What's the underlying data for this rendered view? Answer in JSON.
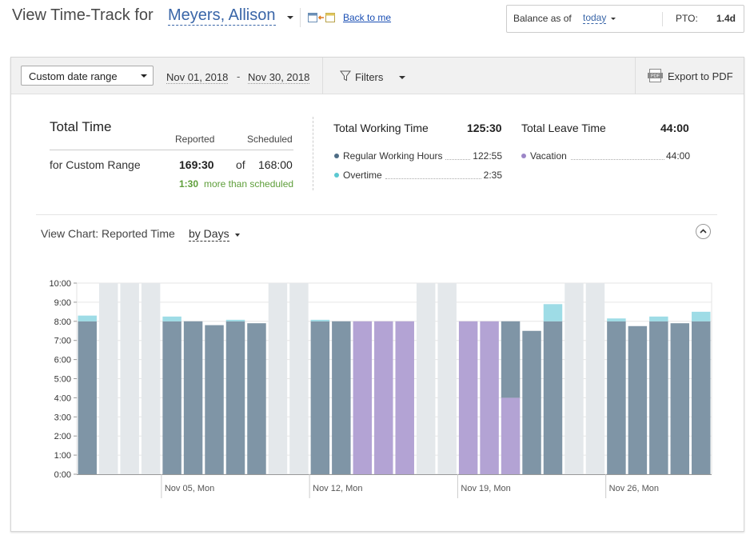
{
  "header": {
    "title": "View Time-Track for",
    "employee_name": "Meyers, Allison",
    "back_link": "Back to me",
    "balance_label": "Balance as of",
    "balance_date": "today",
    "pto_label": "PTO:",
    "pto_value": "1.4d"
  },
  "toolbar": {
    "range_select": "Custom date range",
    "date_from": "Nov 01, 2018",
    "date_separator": "-",
    "date_to": "Nov 30, 2018",
    "filters_label": "Filters",
    "export_label": "Export to PDF"
  },
  "summary": {
    "title": "Total Time",
    "col_reported": "Reported",
    "col_scheduled": "Scheduled",
    "range_label": "for Custom Range",
    "reported_value": "169:30",
    "of_label": "of",
    "scheduled_value": "168:00",
    "diff_value": "1:30",
    "diff_label": "more than scheduled"
  },
  "working": {
    "title": "Total Working Time",
    "value": "125:30",
    "items": [
      {
        "label": "Regular Working Hours",
        "value": "122:55",
        "color": "#4e6c85"
      },
      {
        "label": "Overtime",
        "value": "2:35",
        "color": "#5bc8d1"
      }
    ]
  },
  "leave": {
    "title": "Total Leave Time",
    "value": "44:00",
    "items": [
      {
        "label": "Vacation",
        "value": "44:00",
        "color": "#9c86c7"
      }
    ]
  },
  "chart_header": {
    "view_label": "View Chart: Reported Time",
    "by_label": "by Days"
  },
  "chart_data": {
    "type": "bar",
    "stacked": true,
    "y_tick_labels": [
      "0:00",
      "1:00",
      "2:00",
      "3:00",
      "4:00",
      "5:00",
      "6:00",
      "7:00",
      "8:00",
      "9:00",
      "10:00"
    ],
    "ylim": [
      0,
      10
    ],
    "x_tick_labels": [
      {
        "label": "Nov 05, Mon",
        "day": 5
      },
      {
        "label": "Nov 12, Mon",
        "day": 12
      },
      {
        "label": "Nov 19, Mon",
        "day": 19
      },
      {
        "label": "Nov 26, Mon",
        "day": 26
      }
    ],
    "colors": {
      "regular": "#7f95a6",
      "overtime": "#9edce6",
      "vacation": "#b3a3d4",
      "weekend": "#e4e8eb"
    },
    "days": [
      {
        "day": 1,
        "regular": 8.0,
        "overtime": 0.3,
        "vacation": 0
      },
      {
        "day": 2,
        "regular": 0,
        "overtime": 0,
        "vacation": 0,
        "weekend": false,
        "off": true
      },
      {
        "day": 3,
        "weekend": true
      },
      {
        "day": 4,
        "weekend": true
      },
      {
        "day": 5,
        "regular": 8.0,
        "overtime": 0.25,
        "vacation": 0
      },
      {
        "day": 6,
        "regular": 8.0,
        "overtime": 0,
        "vacation": 0
      },
      {
        "day": 7,
        "regular": 7.8,
        "overtime": 0,
        "vacation": 0
      },
      {
        "day": 8,
        "regular": 8.0,
        "overtime": 0.08,
        "vacation": 0
      },
      {
        "day": 9,
        "regular": 7.9,
        "overtime": 0,
        "vacation": 0
      },
      {
        "day": 10,
        "weekend": true
      },
      {
        "day": 11,
        "weekend": true
      },
      {
        "day": 12,
        "regular": 8.0,
        "overtime": 0.08,
        "vacation": 0
      },
      {
        "day": 13,
        "regular": 8.0,
        "overtime": 0,
        "vacation": 0
      },
      {
        "day": 14,
        "regular": 0,
        "overtime": 0,
        "vacation": 8.0
      },
      {
        "day": 15,
        "regular": 0,
        "overtime": 0,
        "vacation": 8.0
      },
      {
        "day": 16,
        "regular": 0,
        "overtime": 0,
        "vacation": 8.0
      },
      {
        "day": 17,
        "weekend": true
      },
      {
        "day": 18,
        "weekend": true
      },
      {
        "day": 19,
        "regular": 0,
        "overtime": 0,
        "vacation": 8.0
      },
      {
        "day": 20,
        "regular": 0,
        "overtime": 0,
        "vacation": 8.0
      },
      {
        "day": 21,
        "regular": 4.0,
        "overtime": 0,
        "vacation": 4.0,
        "vacation_first": true
      },
      {
        "day": 22,
        "regular": 7.5,
        "overtime": 0,
        "vacation": 0
      },
      {
        "day": 23,
        "regular": 8.0,
        "overtime": 0.9,
        "vacation": 0
      },
      {
        "day": 24,
        "weekend": true
      },
      {
        "day": 25,
        "weekend": true
      },
      {
        "day": 26,
        "regular": 8.0,
        "overtime": 0.15,
        "vacation": 0
      },
      {
        "day": 27,
        "regular": 7.75,
        "overtime": 0,
        "vacation": 0
      },
      {
        "day": 28,
        "regular": 8.0,
        "overtime": 0.25,
        "vacation": 0
      },
      {
        "day": 29,
        "regular": 7.9,
        "overtime": 0,
        "vacation": 0
      },
      {
        "day": 30,
        "regular": 8.0,
        "overtime": 0.5,
        "vacation": 0
      }
    ]
  }
}
